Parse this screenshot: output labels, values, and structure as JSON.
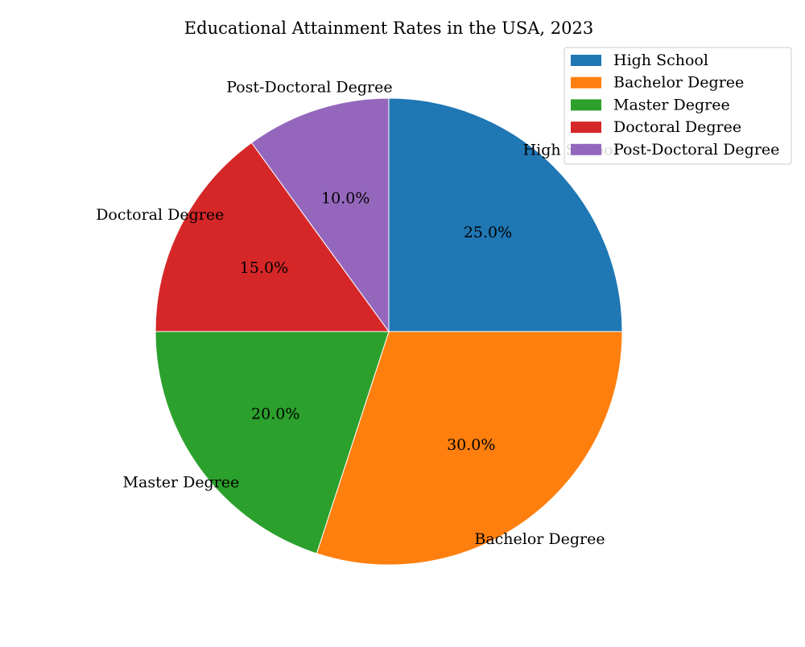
{
  "chart_data": {
    "type": "pie",
    "title": "Educational Attainment Rates in the USA, 2023",
    "categories": [
      "High School",
      "Bachelor Degree",
      "Master Degree",
      "Doctoral Degree",
      "Post-Doctoral Degree"
    ],
    "values": [
      25.0,
      30.0,
      20.0,
      15.0,
      10.0
    ],
    "value_labels": [
      "25.0%",
      "30.0%",
      "20.0%",
      "15.0%",
      "10.0%"
    ],
    "colors": [
      "#1f77b4",
      "#ff7f0e",
      "#2ca02c",
      "#d62728",
      "#9467bd"
    ],
    "start_angle_deg": 90,
    "direction": "clockwise",
    "legend": {
      "placement": "top-right",
      "entries": [
        "High School",
        "Bachelor Degree",
        "Master Degree",
        "Doctoral Degree",
        "Post-Doctoral Degree"
      ]
    }
  }
}
